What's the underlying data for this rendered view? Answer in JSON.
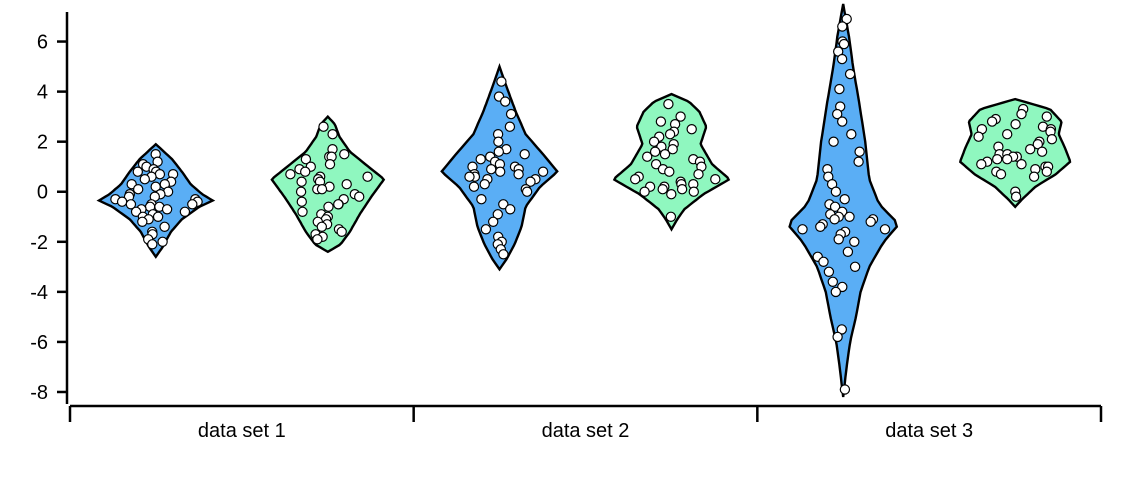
{
  "chart_data": {
    "type": "violin",
    "title": "",
    "xlabel": "",
    "ylabel": "",
    "ylim": [
      -8.4,
      7.5
    ],
    "y_ticks": [
      -8,
      -6,
      -4,
      -2,
      0,
      2,
      4,
      6
    ],
    "y_tick_labels": [
      "-8",
      "-6",
      "-4",
      "-2",
      "0",
      "2",
      "4",
      "6"
    ],
    "categories": [
      "data set 1",
      "data set 2",
      "data set 3"
    ],
    "grid": false,
    "legend": "none",
    "colors": {
      "blue_series": "#5aaef5",
      "green_series": "#8ff7bf"
    },
    "groups": [
      {
        "category": "data set 1",
        "violins": [
          {
            "color": "#5aaef5",
            "ymin": -2.6,
            "ymax": 1.9,
            "profile": [
              [
                -2.6,
                0.0
              ],
              [
                -2.2,
                0.12
              ],
              [
                -1.6,
                0.26
              ],
              [
                -1.1,
                0.45
              ],
              [
                -0.6,
                0.75
              ],
              [
                -0.35,
                0.98
              ],
              [
                -0.1,
                0.8
              ],
              [
                0.3,
                0.6
              ],
              [
                0.8,
                0.45
              ],
              [
                1.3,
                0.28
              ],
              [
                1.9,
                0.0
              ]
            ],
            "points": [
              1.5,
              1.2,
              1.1,
              1.0,
              0.9,
              0.8,
              0.8,
              0.7,
              0.7,
              0.6,
              0.5,
              0.4,
              0.3,
              0.3,
              0.2,
              0.1,
              0.0,
              -0.1,
              -0.1,
              -0.2,
              -0.2,
              -0.3,
              -0.3,
              -0.4,
              -0.4,
              -0.5,
              -0.5,
              -0.5,
              -0.6,
              -0.6,
              -0.7,
              -0.7,
              -0.8,
              -0.8,
              -0.9,
              -1.0,
              -1.0,
              -1.1,
              -1.2,
              -1.4,
              -1.6,
              -1.7,
              -1.9,
              -2.0,
              -2.1
            ]
          },
          {
            "color": "#8ff7bf",
            "ymin": -2.4,
            "ymax": 3.0,
            "profile": [
              [
                -2.4,
                0.0
              ],
              [
                -2.1,
                0.22
              ],
              [
                -1.6,
                0.38
              ],
              [
                -0.9,
                0.55
              ],
              [
                -0.2,
                0.75
              ],
              [
                0.5,
                0.97
              ],
              [
                1.0,
                0.7
              ],
              [
                1.6,
                0.38
              ],
              [
                2.2,
                0.2
              ],
              [
                2.7,
                0.12
              ],
              [
                3.0,
                0.0
              ]
            ],
            "points": [
              2.6,
              2.3,
              1.7,
              1.5,
              1.4,
              1.4,
              1.3,
              1.1,
              1.0,
              0.9,
              0.8,
              0.7,
              0.6,
              0.6,
              0.5,
              0.4,
              0.4,
              0.3,
              0.2,
              0.1,
              0.1,
              0.0,
              -0.1,
              -0.2,
              -0.3,
              -0.4,
              -0.5,
              -0.5,
              -0.6,
              -0.8,
              -0.9,
              -1.0,
              -1.1,
              -1.2,
              -1.3,
              -1.4,
              -1.5,
              -1.6,
              -1.7,
              -1.8,
              -1.9
            ]
          }
        ]
      },
      {
        "category": "data set 2",
        "violins": [
          {
            "color": "#5aaef5",
            "ymin": -3.1,
            "ymax": 5.0,
            "profile": [
              [
                -3.1,
                0.0
              ],
              [
                -2.7,
                0.12
              ],
              [
                -2.1,
                0.26
              ],
              [
                -1.4,
                0.38
              ],
              [
                -0.6,
                0.45
              ],
              [
                0.2,
                0.7
              ],
              [
                0.8,
                1.0
              ],
              [
                1.5,
                0.75
              ],
              [
                2.3,
                0.45
              ],
              [
                3.2,
                0.28
              ],
              [
                4.2,
                0.12
              ],
              [
                5.0,
                0.0
              ]
            ],
            "points": [
              4.4,
              3.8,
              3.6,
              3.1,
              2.6,
              2.3,
              2.0,
              1.7,
              1.6,
              1.5,
              1.4,
              1.3,
              1.2,
              1.1,
              1.0,
              1.0,
              0.9,
              0.9,
              0.8,
              0.8,
              0.7,
              0.7,
              0.6,
              0.6,
              0.5,
              0.5,
              0.4,
              0.3,
              0.2,
              0.1,
              0.0,
              -0.3,
              -0.5,
              -0.7,
              -0.9,
              -1.2,
              -1.5,
              -1.8,
              -2.0,
              -2.1,
              -2.3,
              -2.5
            ]
          },
          {
            "color": "#8ff7bf",
            "ymin": -1.5,
            "ymax": 3.9,
            "profile": [
              [
                -1.5,
                0.0
              ],
              [
                -1.1,
                0.1
              ],
              [
                -0.7,
                0.22
              ],
              [
                -0.1,
                0.55
              ],
              [
                0.5,
                1.0
              ],
              [
                1.1,
                0.7
              ],
              [
                1.9,
                0.5
              ],
              [
                2.6,
                0.6
              ],
              [
                3.2,
                0.48
              ],
              [
                3.6,
                0.3
              ],
              [
                3.9,
                0.0
              ]
            ],
            "points": [
              3.5,
              3.0,
              2.8,
              2.7,
              2.5,
              2.4,
              2.3,
              2.2,
              2.0,
              1.9,
              1.8,
              1.7,
              1.6,
              1.5,
              1.4,
              1.3,
              1.2,
              1.1,
              1.0,
              0.9,
              0.8,
              0.7,
              0.6,
              0.5,
              0.5,
              0.4,
              0.3,
              0.3,
              0.2,
              0.2,
              0.1,
              0.1,
              0.0,
              0.0,
              -0.1,
              -1.0
            ]
          }
        ]
      },
      {
        "category": "data set 3",
        "violins": [
          {
            "color": "#5aaef5",
            "ymin": -8.2,
            "ymax": 7.5,
            "profile": [
              [
                -8.2,
                0.0
              ],
              [
                -7.0,
                0.06
              ],
              [
                -6.0,
                0.12
              ],
              [
                -5.0,
                0.22
              ],
              [
                -4.0,
                0.3
              ],
              [
                -3.0,
                0.45
              ],
              [
                -2.0,
                0.7
              ],
              [
                -1.3,
                0.96
              ],
              [
                -0.5,
                0.62
              ],
              [
                0.5,
                0.45
              ],
              [
                2.0,
                0.38
              ],
              [
                3.5,
                0.28
              ],
              [
                5.0,
                0.17
              ],
              [
                6.2,
                0.1
              ],
              [
                7.5,
                0.0
              ]
            ],
            "points": [
              6.9,
              6.6,
              6.0,
              5.9,
              5.6,
              5.3,
              4.7,
              4.1,
              3.4,
              3.1,
              2.8,
              2.3,
              2.0,
              1.6,
              1.2,
              0.9,
              0.6,
              0.3,
              0.0,
              -0.3,
              -0.5,
              -0.6,
              -0.8,
              -0.9,
              -1.0,
              -1.0,
              -1.1,
              -1.1,
              -1.2,
              -1.3,
              -1.4,
              -1.5,
              -1.5,
              -1.6,
              -1.7,
              -1.9,
              -2.0,
              -2.4,
              -2.6,
              -2.8,
              -3.0,
              -3.2,
              -3.6,
              -3.8,
              -4.0,
              -5.5,
              -5.8,
              -7.9
            ]
          },
          {
            "color": "#8ff7bf",
            "ymin": -0.6,
            "ymax": 3.7,
            "profile": [
              [
                -0.6,
                0.0
              ],
              [
                -0.3,
                0.12
              ],
              [
                0.2,
                0.35
              ],
              [
                0.7,
                0.7
              ],
              [
                1.2,
                0.95
              ],
              [
                1.8,
                0.85
              ],
              [
                2.3,
                0.75
              ],
              [
                2.8,
                0.8
              ],
              [
                3.3,
                0.6
              ],
              [
                3.7,
                0.0
              ]
            ],
            "points": [
              3.3,
              3.1,
              3.0,
              2.9,
              2.8,
              2.7,
              2.6,
              2.5,
              2.5,
              2.4,
              2.3,
              2.2,
              2.1,
              2.0,
              1.9,
              1.8,
              1.7,
              1.6,
              1.5,
              1.5,
              1.4,
              1.4,
              1.3,
              1.3,
              1.2,
              1.1,
              1.1,
              1.0,
              1.0,
              0.9,
              0.8,
              0.8,
              0.7,
              0.6,
              0.0,
              -0.2
            ]
          }
        ]
      }
    ]
  }
}
